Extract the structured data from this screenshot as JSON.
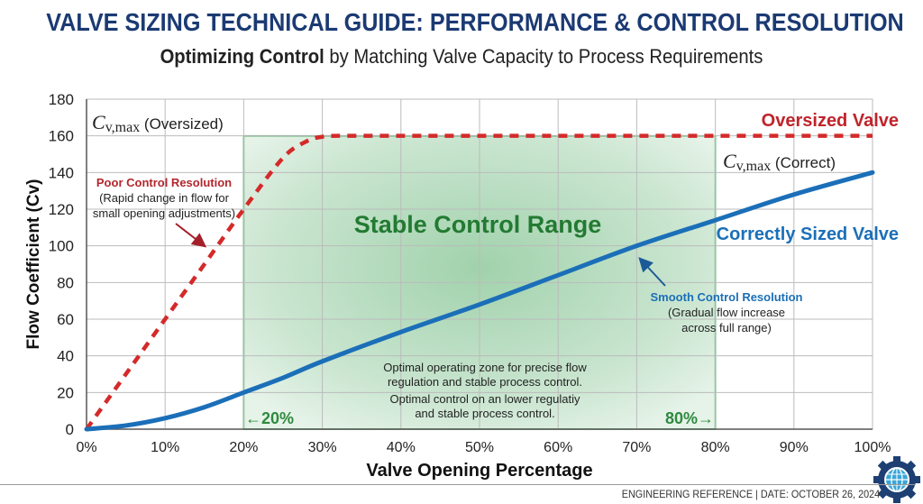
{
  "header": {
    "title": "VALVE SIZING TECHNICAL GUIDE: PERFORMANCE & CONTROL RESOLUTION",
    "subtitle_bold": "Optimizing Control",
    "subtitle_rest": " by Matching Valve Capacity to Process Requirements"
  },
  "footer": {
    "text": "ENGINEERING REFERENCE | DATE: OCTOBER 26, 2024",
    "logo_icon": "gear-globe-icon"
  },
  "chart_data": {
    "type": "line",
    "xlabel": "Valve Opening Percentage",
    "ylabel": "Flow Coefficient (Cv)",
    "xlim": [
      0,
      100
    ],
    "ylim": [
      0,
      180
    ],
    "x_ticks": [
      "0%",
      "10%",
      "20%",
      "30%",
      "40%",
      "50%",
      "60%",
      "70%",
      "80%",
      "90%",
      "100%"
    ],
    "y_ticks": [
      "0",
      "20",
      "40",
      "60",
      "80",
      "100",
      "120",
      "140",
      "160",
      "180"
    ],
    "grid": true,
    "series": [
      {
        "name": "Oversized Valve",
        "color": "#d42a2a",
        "style": "dashed",
        "x": [
          0,
          5,
          10,
          15,
          20,
          25,
          28,
          30,
          32,
          40,
          50,
          60,
          70,
          80,
          90,
          100
        ],
        "y": [
          0,
          30,
          60,
          90,
          120,
          148,
          157,
          159.5,
          160,
          160,
          160,
          160,
          160,
          160,
          160,
          160
        ]
      },
      {
        "name": "Correctly Sized Valve",
        "color": "#1b6fb8",
        "style": "solid",
        "x": [
          0,
          5,
          10,
          15,
          20,
          25,
          30,
          40,
          50,
          60,
          70,
          80,
          90,
          100
        ],
        "y": [
          0,
          2,
          6,
          12,
          20,
          28,
          37,
          53,
          68,
          84,
          100,
          114,
          128,
          140
        ]
      }
    ],
    "region": {
      "label": "Stable Control Range",
      "x": [
        20,
        80
      ],
      "y": [
        0,
        160
      ],
      "color": "#2e9a46",
      "left_marker": "←20%",
      "right_marker": "80%→"
    },
    "annotations": {
      "cvmax_oversized": {
        "sym": "C",
        "sub": "v,max",
        "text": " (Oversized)"
      },
      "cvmax_correct": {
        "sym": "C",
        "sub": "v,max",
        "text": " (Correct)"
      },
      "poor_title": "Poor Control Resolution",
      "poor_line1": "(Rapid change in flow for",
      "poor_line2": "small opening adjustments)",
      "smooth_title": "Smooth Control Resolution",
      "smooth_line1": "(Gradual flow increase",
      "smooth_line2": "across full range)",
      "zone_line1": "Optimal operating zone for precise flow",
      "zone_line2": "regulation and stable process control.",
      "zone_line3": "Optimal control on an lower regulatiy",
      "zone_line4": "and stable process control."
    }
  }
}
